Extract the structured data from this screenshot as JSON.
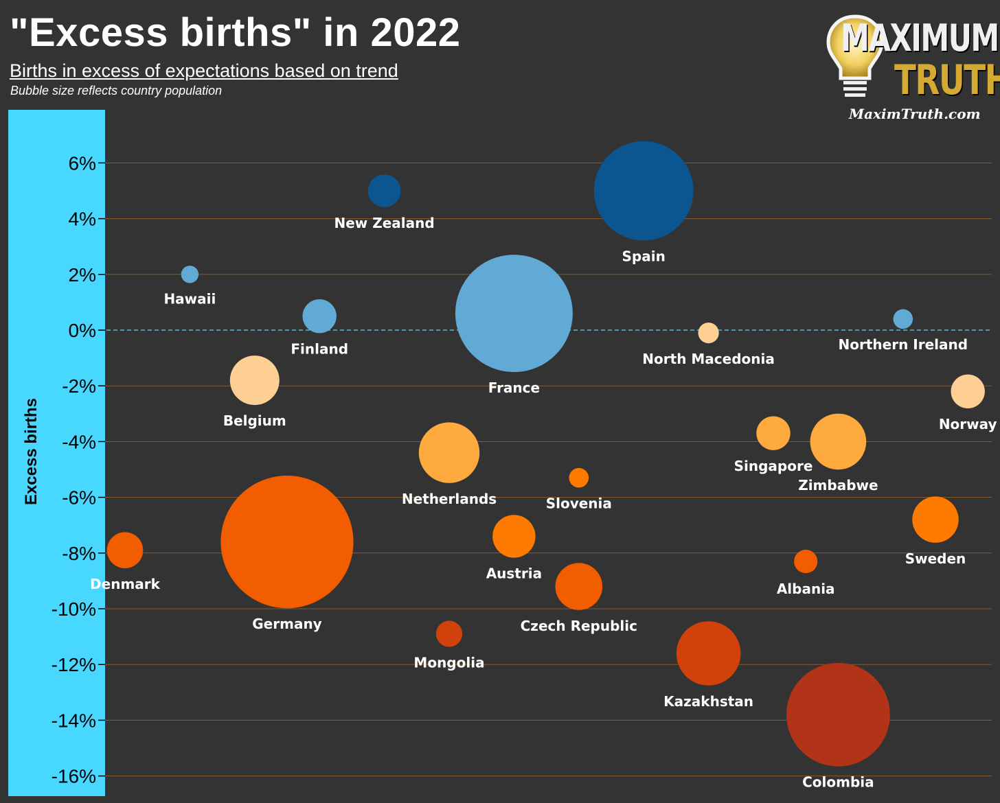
{
  "header": {
    "title": "\"Excess births\" in 2022",
    "subtitle": "Births in excess of expectations based on trend",
    "note": "Bubble size reflects country population"
  },
  "logo": {
    "line1": "MAXIMUM",
    "line2": "TRUTH",
    "url": "MaximTruth.com"
  },
  "colors": {
    "background": "#333333",
    "axis_band": "#48d8ff",
    "gridline": "#8a5a2a",
    "zero_line": "#5fb8c8"
  },
  "chart_data": {
    "type": "scatter",
    "title": "\"Excess births\" in 2022",
    "subtitle": "Births in excess of expectations based on trend",
    "ylabel": "Excess births",
    "xlabel": "",
    "ylim": [
      -16.5,
      7
    ],
    "yticks": [
      6,
      4,
      2,
      0,
      -2,
      -4,
      -6,
      -8,
      -10,
      -12,
      -14,
      -16
    ],
    "ytick_labels": [
      "6%",
      "4%",
      "2%",
      "0%",
      "-2%",
      "-4%",
      "-6%",
      "-8%",
      "-10%",
      "-12%",
      "-14%",
      "-16%"
    ],
    "x_axis": "none (countries spread horizontally)",
    "grid": true,
    "size_encoding": "population",
    "points": [
      {
        "country": "Spain",
        "x": 8,
        "y": 5.0,
        "size": 6.45,
        "color": "#0b5690"
      },
      {
        "country": "New Zealand",
        "x": 4,
        "y": 5.0,
        "size": 0.7,
        "color": "#0b5690"
      },
      {
        "country": "Hawaii",
        "x": 1,
        "y": 2.0,
        "size": 0.2,
        "color": "#62aad6"
      },
      {
        "country": "Finland",
        "x": 3,
        "y": 0.5,
        "size": 0.75,
        "color": "#62aad6"
      },
      {
        "country": "France",
        "x": 6,
        "y": 0.6,
        "size": 9.0,
        "color": "#62aad6"
      },
      {
        "country": "Northern Ireland",
        "x": 12,
        "y": 0.4,
        "size": 0.25,
        "color": "#62aad6"
      },
      {
        "country": "North Macedonia",
        "x": 9,
        "y": -0.1,
        "size": 0.28,
        "color": "#fdcf94"
      },
      {
        "country": "Belgium",
        "x": 2,
        "y": -1.8,
        "size": 1.6,
        "color": "#fdcf94"
      },
      {
        "country": "Norway",
        "x": 13,
        "y": -2.2,
        "size": 0.75,
        "color": "#fdcf94"
      },
      {
        "country": "Singapore",
        "x": 10,
        "y": -3.7,
        "size": 0.75,
        "color": "#feaa3e"
      },
      {
        "country": "Zimbabwe",
        "x": 11,
        "y": -4.0,
        "size": 2.05,
        "color": "#feaa3e"
      },
      {
        "country": "Netherlands",
        "x": 5,
        "y": -4.4,
        "size": 2.4,
        "color": "#feaa3e"
      },
      {
        "country": "Slovenia",
        "x": 7,
        "y": -5.3,
        "size": 0.25,
        "color": "#ff7a00"
      },
      {
        "country": "Sweden",
        "x": 12.5,
        "y": -6.8,
        "size": 1.4,
        "color": "#ff7a00"
      },
      {
        "country": "Austria",
        "x": 6,
        "y": -7.4,
        "size": 1.2,
        "color": "#ff7a00"
      },
      {
        "country": "Denmark",
        "x": 0,
        "y": -7.9,
        "size": 0.85,
        "color": "#f25d00"
      },
      {
        "country": "Germany",
        "x": 2.5,
        "y": -7.6,
        "size": 11.5,
        "color": "#f25d00"
      },
      {
        "country": "Albania",
        "x": 10.5,
        "y": -8.3,
        "size": 0.36,
        "color": "#f25d00"
      },
      {
        "country": "Czech Republic",
        "x": 7,
        "y": -9.2,
        "size": 1.45,
        "color": "#f25d00"
      },
      {
        "country": "Mongolia",
        "x": 5,
        "y": -10.9,
        "size": 0.45,
        "color": "#d1420a"
      },
      {
        "country": "Kazakhstan",
        "x": 9,
        "y": -11.6,
        "size": 2.7,
        "color": "#d1420a"
      },
      {
        "country": "Colombia",
        "x": 11,
        "y": -13.8,
        "size": 7.0,
        "color": "#b23418"
      }
    ]
  }
}
